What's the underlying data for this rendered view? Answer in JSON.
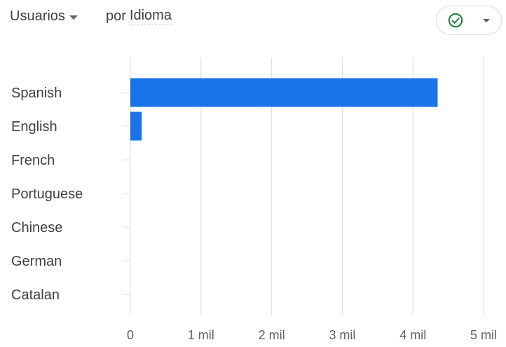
{
  "header": {
    "metric_label": "Usuarios",
    "dimension_prefix": "por",
    "dimension_value": "Idioma",
    "status_icon": "check-circle-icon",
    "menu_icon": "chevron-down-icon"
  },
  "colors": {
    "bar": "#1a73e8",
    "grid": "#dadce0",
    "check": "#188038"
  },
  "chart_data": {
    "type": "bar",
    "orientation": "horizontal",
    "categories": [
      "Spanish",
      "English",
      "French",
      "Portuguese",
      "Chinese",
      "German",
      "Catalan"
    ],
    "values": [
      4350,
      160,
      0,
      0,
      0,
      0,
      0
    ],
    "xlim": [
      0,
      5000
    ],
    "x_ticks": [
      0,
      1000,
      2000,
      3000,
      4000,
      5000
    ],
    "x_tick_labels": [
      "0",
      "1 mil",
      "2 mil",
      "3 mil",
      "4 mil",
      "5 mil"
    ],
    "grid": true,
    "legend": "none"
  }
}
